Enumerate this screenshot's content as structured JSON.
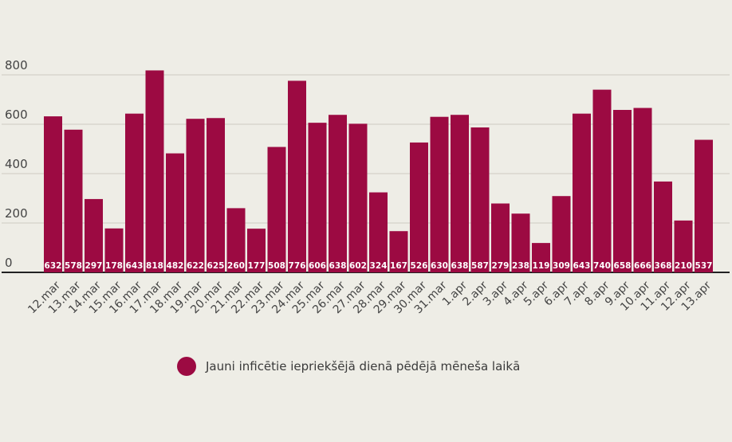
{
  "chart_data": {
    "type": "bar",
    "title": "",
    "xlabel": "",
    "ylabel": "",
    "ylim": [
      0,
      800
    ],
    "yticks": [
      0,
      200,
      400,
      600,
      800
    ],
    "grid": true,
    "legend_position": "bottom",
    "categories": [
      "12.mar",
      "13.mar",
      "14.mar",
      "15.mar",
      "16.mar",
      "17.mar",
      "18.mar",
      "19.mar",
      "20.mar",
      "21.mar",
      "22.mar",
      "23.mar",
      "24.mar",
      "25.mar",
      "26.mar",
      "27.mar",
      "28.mar",
      "29.mar",
      "30.mar",
      "31.mar",
      "1.apr",
      "2.apr",
      "3.apr",
      "4.apr",
      "5.apr",
      "6.apr",
      "7.apr",
      "8.apr",
      "9.apr",
      "10.apr",
      "11.apr",
      "12.apr",
      "13.apr"
    ],
    "series": [
      {
        "name": "Jauni inficētie iepriekšējā dienā pēdējā mēneša laikā",
        "color": "#9c0a42",
        "values": [
          632,
          578,
          297,
          178,
          643,
          818,
          482,
          622,
          625,
          260,
          177,
          508,
          776,
          606,
          638,
          602,
          324,
          167,
          526,
          630,
          638,
          587,
          279,
          238,
          119,
          309,
          643,
          740,
          658,
          666,
          368,
          210,
          537
        ]
      }
    ]
  },
  "colors": {
    "bar": "#9c0a42",
    "grid": "#cdcbc3",
    "baseline": "#222222",
    "tick_text": "#444444",
    "background": "#eeede6"
  }
}
